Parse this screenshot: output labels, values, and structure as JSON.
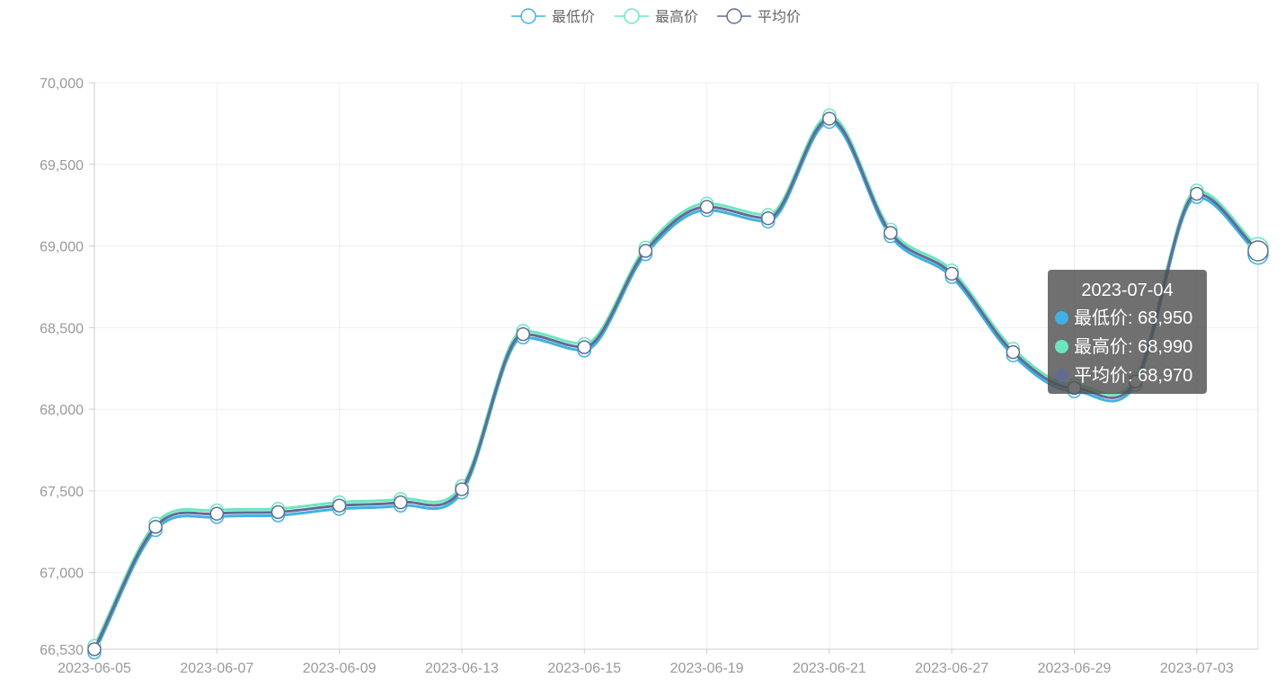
{
  "chart_data": {
    "type": "line",
    "smooth": true,
    "x": [
      "2023-06-05",
      "2023-06-06",
      "2023-06-07",
      "2023-06-08",
      "2023-06-09",
      "2023-06-12",
      "2023-06-13",
      "2023-06-14",
      "2023-06-15",
      "2023-06-16",
      "2023-06-19",
      "2023-06-20",
      "2023-06-21",
      "2023-06-26",
      "2023-06-27",
      "2023-06-28",
      "2023-06-29",
      "2023-06-30",
      "2023-07-03",
      "2023-07-04"
    ],
    "x_tick_labels": [
      "2023-06-05",
      "2023-06-07",
      "2023-06-09",
      "2023-06-13",
      "2023-06-15",
      "2023-06-19",
      "2023-06-21",
      "2023-06-27",
      "2023-06-29",
      "2023-07-03"
    ],
    "y_tick_labels": [
      "66,530",
      "67,000",
      "67,500",
      "68,000",
      "68,500",
      "69,000",
      "69,500",
      "70,000"
    ],
    "ylim": [
      66530,
      70000
    ],
    "grid": true,
    "legend_position": "top-center",
    "series": [
      {
        "name": "最低价",
        "color": "#3fb1e3",
        "values": [
          66510,
          67260,
          67340,
          67350,
          67390,
          67410,
          67490,
          68440,
          68360,
          68950,
          69220,
          69150,
          69760,
          69060,
          68810,
          68330,
          68110,
          68150,
          69300,
          68950
        ]
      },
      {
        "name": "最高价",
        "color": "#6be6c1",
        "values": [
          66550,
          67300,
          67380,
          67390,
          67430,
          67450,
          67530,
          68480,
          68400,
          68990,
          69260,
          69190,
          69800,
          69100,
          68850,
          68370,
          68150,
          68190,
          69340,
          68990
        ]
      },
      {
        "name": "平均价",
        "color": "#626c91",
        "values": [
          66530,
          67280,
          67360,
          67370,
          67410,
          67430,
          67510,
          68460,
          68380,
          68970,
          69240,
          69170,
          69780,
          69080,
          68830,
          68350,
          68130,
          68170,
          69320,
          68970
        ]
      }
    ],
    "tooltip": {
      "title": "2023-07-04",
      "rows": [
        {
          "label": "最低价: 68,950",
          "color": "#3fb1e3"
        },
        {
          "label": "最高价: 68,990",
          "color": "#6be6c1"
        },
        {
          "label": "平均价: 68,970",
          "color": "#626c91"
        }
      ]
    }
  }
}
